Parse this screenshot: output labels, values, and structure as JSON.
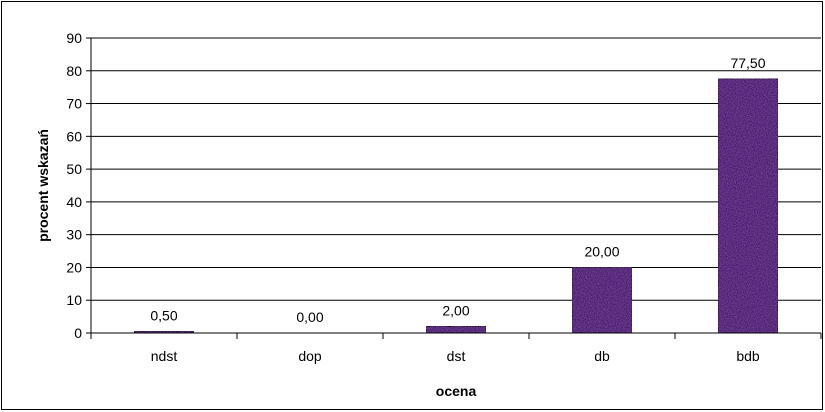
{
  "chart_data": {
    "type": "bar",
    "title": "",
    "xlabel": "ocena",
    "ylabel": "procent wskazań",
    "categories": [
      "ndst",
      "dop",
      "dst",
      "db",
      "bdb"
    ],
    "values": [
      0.5,
      0.0,
      2.0,
      20.0,
      77.5
    ],
    "value_labels": [
      "0,50",
      "0,00",
      "2,00",
      "20,00",
      "77,50"
    ],
    "ylim": [
      0,
      90
    ],
    "yticks": [
      0,
      10,
      20,
      30,
      40,
      50,
      60,
      70,
      80,
      90
    ],
    "grid": true,
    "legend": "none",
    "colors": {
      "bar_fill": "#4a1d6e",
      "bar_texture": "#6a3590",
      "bar_stroke": "#000000",
      "grid": "#000000",
      "axis": "#000000"
    }
  }
}
